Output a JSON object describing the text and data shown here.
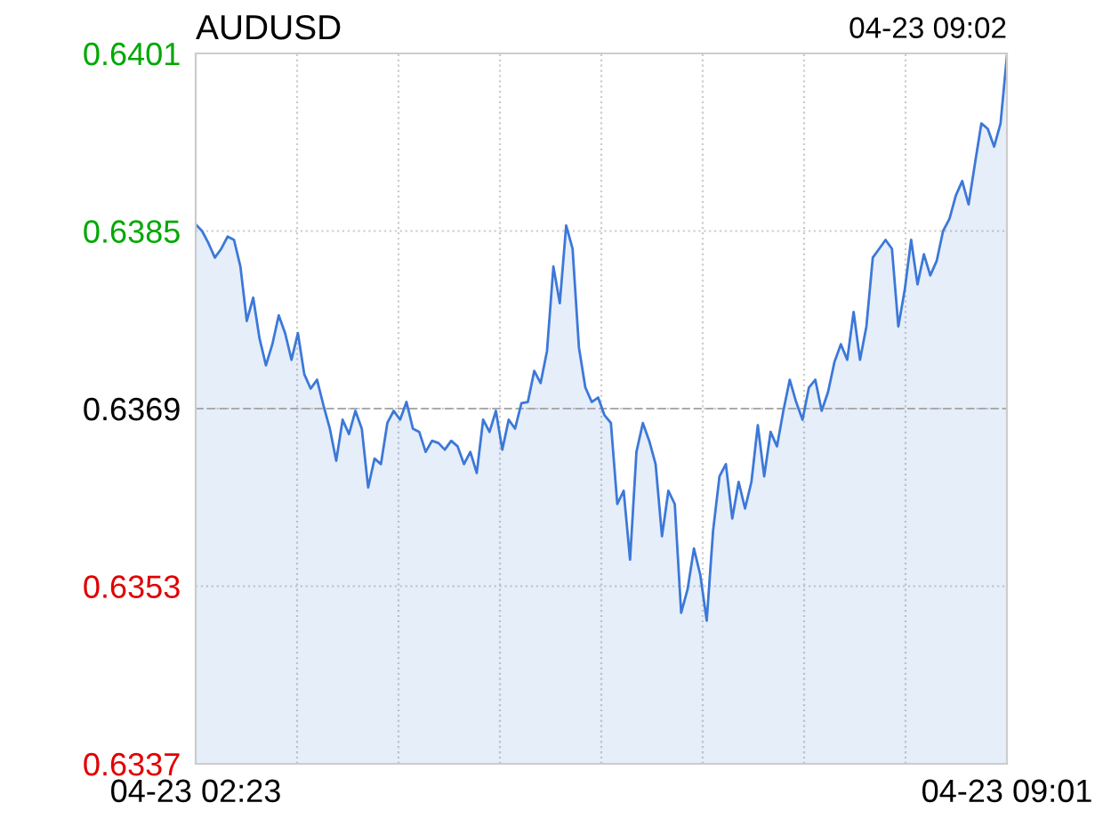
{
  "chart_data": {
    "type": "area",
    "title": "AUDUSD",
    "annotations": [
      "04-23 09:02"
    ],
    "categories": [
      "04-23 02:23",
      null,
      null,
      null,
      null,
      null,
      null,
      null,
      null,
      null,
      null,
      null,
      null,
      null,
      null,
      null,
      null,
      null,
      null,
      null,
      null,
      null,
      null,
      null,
      null,
      null,
      null,
      null,
      null,
      null,
      null,
      null,
      null,
      null,
      null,
      null,
      null,
      null,
      null,
      null,
      null,
      null,
      null,
      null,
      null,
      null,
      null,
      null,
      null,
      null,
      null,
      null,
      null,
      null,
      null,
      null,
      null,
      null,
      null,
      null,
      null,
      null,
      null,
      null,
      null,
      null,
      null,
      null,
      null,
      null,
      null,
      null,
      null,
      null,
      null,
      null,
      null,
      null,
      null,
      null,
      null,
      null,
      null,
      null,
      null,
      null,
      null,
      null,
      null,
      null,
      null,
      null,
      null,
      null,
      null,
      null,
      null,
      null,
      null,
      null,
      null,
      null,
      null,
      null,
      null,
      null,
      null,
      null,
      null,
      null,
      null,
      null,
      null,
      null,
      null,
      null,
      null,
      null,
      null,
      null,
      null,
      null,
      null,
      null,
      null,
      null,
      null,
      "04-23 09:01"
    ],
    "series": [
      {
        "color": "#3c78d8",
        "values": [
          0.63856,
          0.6385,
          0.63839,
          0.63826,
          0.63834,
          0.63845,
          0.63842,
          0.63818,
          0.63769,
          0.6379,
          0.63753,
          0.63729,
          0.63748,
          0.63774,
          0.63758,
          0.63734,
          0.63758,
          0.63721,
          0.63708,
          0.63716,
          0.63693,
          0.63672,
          0.63643,
          0.6368,
          0.63667,
          0.63688,
          0.63672,
          0.63619,
          0.63645,
          0.6364,
          0.63677,
          0.63688,
          0.6368,
          0.63696,
          0.63672,
          0.63669,
          0.63651,
          0.63661,
          0.63659,
          0.63653,
          0.63661,
          0.63656,
          0.6364,
          0.63651,
          0.63632,
          0.6368,
          0.63669,
          0.63688,
          0.63653,
          0.6368,
          0.63672,
          0.63695,
          0.63696,
          0.63724,
          0.63713,
          0.63742,
          0.63818,
          0.63785,
          0.63855,
          0.63834,
          0.63745,
          0.63709,
          0.63696,
          0.637,
          0.63684,
          0.63677,
          0.63604,
          0.63616,
          0.63554,
          0.63651,
          0.63677,
          0.63661,
          0.6364,
          0.63575,
          0.63616,
          0.63604,
          0.63506,
          0.63527,
          0.63564,
          0.6354,
          0.63499,
          0.6358,
          0.63629,
          0.6364,
          0.63591,
          0.63624,
          0.636,
          0.63624,
          0.63675,
          0.63629,
          0.63669,
          0.63656,
          0.63688,
          0.63716,
          0.63696,
          0.6368,
          0.63709,
          0.63716,
          0.63688,
          0.63705,
          0.63732,
          0.63748,
          0.63734,
          0.63777,
          0.63734,
          0.63764,
          0.63826,
          0.63834,
          0.63842,
          0.63834,
          0.63764,
          0.63797,
          0.63842,
          0.63802,
          0.63829,
          0.6381,
          0.63823,
          0.6385,
          0.63861,
          0.63882,
          0.63895,
          0.63874,
          0.63911,
          0.63947,
          0.63942,
          0.63926,
          0.63947,
          0.64008
        ]
      }
    ],
    "ylim": [
      0.6337,
      0.6401
    ],
    "yticks": [
      0.6401,
      0.6385,
      0.6369,
      0.6353,
      0.6337
    ],
    "ref_lines": [
      {
        "axis": "y",
        "value": 0.6369,
        "color": "#aaaaaa",
        "line_style": "dashed"
      }
    ],
    "grid": true
  }
}
